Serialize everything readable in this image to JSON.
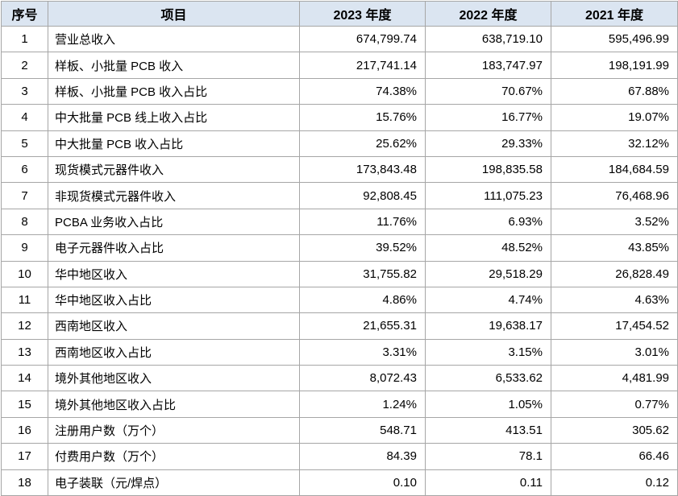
{
  "table": {
    "headers": [
      "序号",
      "项目",
      "2023 年度",
      "2022 年度",
      "2021 年度"
    ],
    "rows": [
      [
        "1",
        "营业总收入",
        "674,799.74",
        "638,719.10",
        "595,496.99"
      ],
      [
        "2",
        "样板、小批量 PCB 收入",
        "217,741.14",
        "183,747.97",
        "198,191.99"
      ],
      [
        "3",
        "样板、小批量 PCB 收入占比",
        "74.38%",
        "70.67%",
        "67.88%"
      ],
      [
        "4",
        "中大批量 PCB 线上收入占比",
        "15.76%",
        "16.77%",
        "19.07%"
      ],
      [
        "5",
        "中大批量 PCB 收入占比",
        "25.62%",
        "29.33%",
        "32.12%"
      ],
      [
        "6",
        "现货模式元器件收入",
        "173,843.48",
        "198,835.58",
        "184,684.59"
      ],
      [
        "7",
        "非现货模式元器件收入",
        "92,808.45",
        "111,075.23",
        "76,468.96"
      ],
      [
        "8",
        "PCBA 业务收入占比",
        "11.76%",
        "6.93%",
        "3.52%"
      ],
      [
        "9",
        "电子元器件收入占比",
        "39.52%",
        "48.52%",
        "43.85%"
      ],
      [
        "10",
        "华中地区收入",
        "31,755.82",
        "29,518.29",
        "26,828.49"
      ],
      [
        "11",
        "华中地区收入占比",
        "4.86%",
        "4.74%",
        "4.63%"
      ],
      [
        "12",
        "西南地区收入",
        "21,655.31",
        "19,638.17",
        "17,454.52"
      ],
      [
        "13",
        "西南地区收入占比",
        "3.31%",
        "3.15%",
        "3.01%"
      ],
      [
        "14",
        "境外其他地区收入",
        "8,072.43",
        "6,533.62",
        "4,481.99"
      ],
      [
        "15",
        "境外其他地区收入占比",
        "1.24%",
        "1.05%",
        "0.77%"
      ],
      [
        "16",
        "注册用户数（万个）",
        "548.71",
        "413.51",
        "305.62"
      ],
      [
        "17",
        "付费用户数（万个）",
        "84.39",
        "78.1",
        "66.46"
      ],
      [
        "18",
        "电子装联（元/焊点）",
        "0.10",
        "0.11",
        "0.12"
      ]
    ]
  },
  "colors": {
    "header_background": "#dbe5f1",
    "border": "#a6a6a6"
  }
}
